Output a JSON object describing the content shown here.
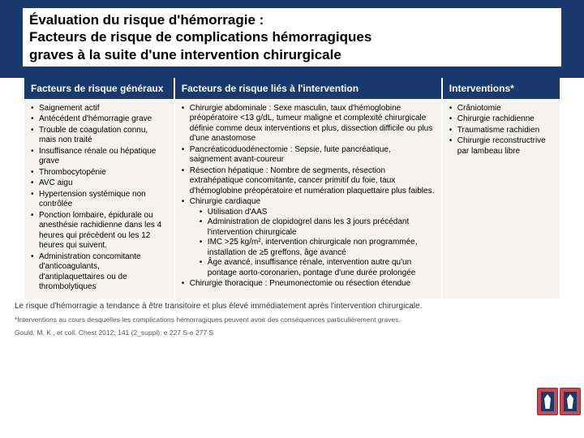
{
  "title": {
    "line1": "Évaluation du risque d'hémorragie :",
    "line2": "Facteurs de risque de complications hémorragiques",
    "line3": "graves à la suite d'une intervention chirurgicale"
  },
  "table": {
    "headers": {
      "col1": "Facteurs de risque généraux",
      "col2": "Facteurs de risque liés à l'intervention",
      "col3": "Interventions*"
    },
    "col_widths": [
      "28%",
      "50%",
      "22%"
    ],
    "col1_items": [
      "Saignement actif",
      "Antécédent d'hémorragie grave",
      "Trouble de coagulation connu, mais non traité",
      "Insuffisance rénale ou hépatique grave",
      "Thrombocytopénie",
      "AVC aigu",
      "Hypertension systémique non contrôlée",
      "Ponction lombaire, épidurale ou anesthésie rachidienne dans les 4 heures qui précèdent ou les 12 heures qui suivent.",
      "Administration concomitante d'anticoagulants, d'antiplaquettaires ou de thrombolytiques"
    ],
    "col2_items": [
      "Chirurgie abdominale : Sexe masculin, taux d'hémoglobine préopératoire <13 g/dL, tumeur maligne et complexité chirurgicale définie comme deux interventions et plus, dissection difficile ou plus d'une anastomose",
      "Pancréaticoduodénectomie : Sepsie, fuite pancréatique, saignement avant-coureur",
      "Résection hépatique : Nombre de segments, résection extrahépatique concomitante, cancer primitif du foie, taux d'hémoglobine préopératoire et numération plaquettaire plus faibles."
    ],
    "col2_cardiac": {
      "label": "Chirurgie cardiaque",
      "subs": [
        "Utilisation d'AAS",
        "Administration de clopidogrel dans les 3 jours précédant l'intervention chirurgicale",
        "IMC >25 kg/m², intervention chirurgicale non programmée, installation de ≥5 greffons, âge avancé",
        "Âge avancé, insuffisance rénale, intervention autre qu'un pontage aorto-coronarien, pontage d'une durée prolongée"
      ]
    },
    "col2_thoracic": "Chirurgie thoracique : Pneumonectomie ou résection étendue",
    "col3_items": [
      "Crâniotomie",
      "Chirurgie rachidienne",
      "Traumatisme rachidien",
      "Chirurgie reconstructrive par lambeau libre"
    ]
  },
  "footnotes": {
    "risk": "Le risque d'hémorragie a tendance à être transitoire et plus élevé immédiatement après l'intervention chirurgicale.",
    "asterisk": "*Interventions au cours desquelles les complications hémorragiques peuvent avoir des conséquences particulièrement graves.",
    "citation": "Gould, M. K., et coll. Chest 2012; 141 (2_suppl): e 227 S-e 277 S"
  },
  "colors": {
    "header_bg": "#1a3a6e",
    "cell_bg": "#f5f3ee",
    "logo_outer": "#c8494e",
    "logo_inner": "#1a3a6e"
  }
}
